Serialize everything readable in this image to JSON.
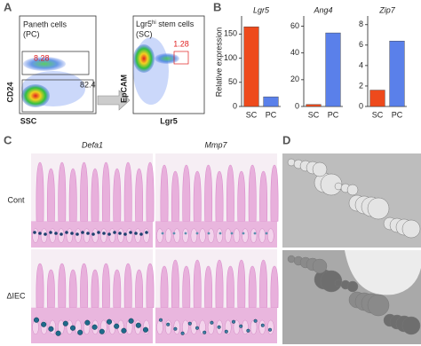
{
  "panel_a": {
    "letter": "A",
    "plot1": {
      "gate_title": "Paneth cells",
      "gate_subtitle": "(PC)",
      "pc_percent": 8.28,
      "other_percent": 82.4,
      "ylabel": "CD24",
      "xlabel": "SSC"
    },
    "plot2": {
      "gate_title_main": "Lgr5",
      "gate_title_sup": "hi",
      "gate_title_rest": " stem cells",
      "gate_subtitle": "(SC)",
      "sc_percent": 1.28,
      "ylabel": "EpCAM",
      "xlabel": "Lgr5"
    }
  },
  "panel_b": {
    "letter": "B",
    "ylabel": "Relative expression"
  },
  "chart_data": [
    {
      "type": "bar",
      "title": "Lgr5",
      "categories": [
        "SC",
        "PC"
      ],
      "values": [
        165,
        20
      ],
      "colors": [
        "#ee4a1c",
        "#5a80ea"
      ],
      "ylim": [
        0,
        180
      ],
      "yticks": [
        0,
        50,
        100,
        150
      ]
    },
    {
      "type": "bar",
      "title": "Ang4",
      "categories": [
        "SC",
        "PC"
      ],
      "values": [
        1.5,
        55
      ],
      "colors": [
        "#ee4a1c",
        "#5a80ea"
      ],
      "ylim": [
        0,
        65
      ],
      "yticks": [
        0,
        20,
        40,
        60
      ]
    },
    {
      "type": "bar",
      "title": "Zip7",
      "categories": [
        "SC",
        "PC"
      ],
      "values": [
        1.6,
        6.4
      ],
      "colors": [
        "#ee4a1c",
        "#5a80ea"
      ],
      "ylim": [
        0,
        8.5
      ],
      "yticks": [
        0,
        2,
        4,
        6,
        8
      ]
    }
  ],
  "panel_c": {
    "letter": "C",
    "columns": [
      "Defa1",
      "Mmp7"
    ],
    "rows": [
      "Cont",
      "ΔIEC"
    ]
  },
  "panel_d": {
    "letter": "D"
  }
}
